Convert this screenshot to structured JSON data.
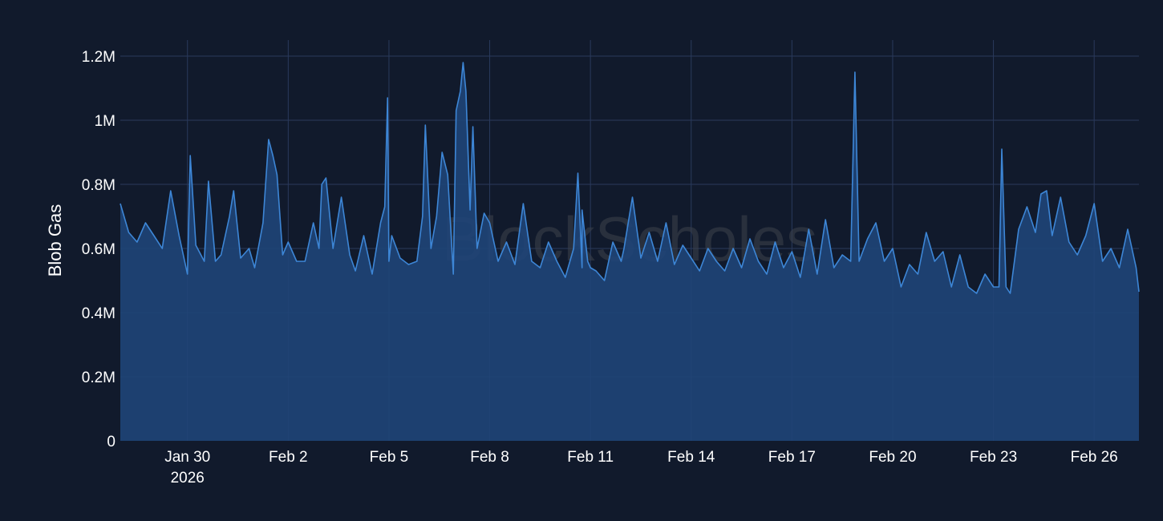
{
  "colors": {
    "background": "#111a2c",
    "grid": "#2a3a5c",
    "line": "#3d86d6",
    "fill": "#1f4578",
    "text": "#ffffff",
    "watermark": "#3a3f4a"
  },
  "watermark": "BlockScholes",
  "chart_data": {
    "type": "area",
    "title": "",
    "xlabel": "",
    "ylabel": "Blob Gas",
    "ylim": [
      0,
      1250000
    ],
    "xlim": [
      "2026-01-28T00:00",
      "2026-02-27T08:00"
    ],
    "grid": true,
    "legend": "none",
    "y_ticks": [
      {
        "value": 0,
        "label": "0"
      },
      {
        "value": 200000,
        "label": "0.2M"
      },
      {
        "value": 400000,
        "label": "0.4M"
      },
      {
        "value": 600000,
        "label": "0.6M"
      },
      {
        "value": 800000,
        "label": "0.8M"
      },
      {
        "value": 1000000,
        "label": "1M"
      },
      {
        "value": 1200000,
        "label": "1.2M"
      }
    ],
    "x_ticks": [
      {
        "date": "2026-01-30",
        "label": "Jan 30",
        "sublabel": "2026"
      },
      {
        "date": "2026-02-02",
        "label": "Feb 2",
        "sublabel": ""
      },
      {
        "date": "2026-02-05",
        "label": "Feb 5",
        "sublabel": ""
      },
      {
        "date": "2026-02-08",
        "label": "Feb 8",
        "sublabel": ""
      },
      {
        "date": "2026-02-11",
        "label": "Feb 11",
        "sublabel": ""
      },
      {
        "date": "2026-02-14",
        "label": "Feb 14",
        "sublabel": ""
      },
      {
        "date": "2026-02-17",
        "label": "Feb 17",
        "sublabel": ""
      },
      {
        "date": "2026-02-20",
        "label": "Feb 20",
        "sublabel": ""
      },
      {
        "date": "2026-02-23",
        "label": "Feb 23",
        "sublabel": ""
      },
      {
        "date": "2026-02-26",
        "label": "Feb 26",
        "sublabel": ""
      }
    ],
    "series": [
      {
        "points": [
          [
            "2026-01-28T00:00",
            740000
          ],
          [
            "2026-01-28T06:00",
            650000
          ],
          [
            "2026-01-28T12:00",
            620000
          ],
          [
            "2026-01-28T18:00",
            680000
          ],
          [
            "2026-01-29T00:00",
            640000
          ],
          [
            "2026-01-29T06:00",
            600000
          ],
          [
            "2026-01-29T12:00",
            780000
          ],
          [
            "2026-01-29T18:00",
            640000
          ],
          [
            "2026-01-30T00:00",
            520000
          ],
          [
            "2026-01-30T02:00",
            890000
          ],
          [
            "2026-01-30T06:00",
            610000
          ],
          [
            "2026-01-30T12:00",
            560000
          ],
          [
            "2026-01-30T15:00",
            810000
          ],
          [
            "2026-01-30T20:00",
            560000
          ],
          [
            "2026-01-31T00:00",
            580000
          ],
          [
            "2026-01-31T06:00",
            700000
          ],
          [
            "2026-01-31T09:00",
            780000
          ],
          [
            "2026-01-31T14:00",
            570000
          ],
          [
            "2026-01-31T20:00",
            600000
          ],
          [
            "2026-02-01T00:00",
            540000
          ],
          [
            "2026-02-01T06:00",
            680000
          ],
          [
            "2026-02-01T10:00",
            940000
          ],
          [
            "2026-02-01T13:00",
            890000
          ],
          [
            "2026-02-01T16:00",
            830000
          ],
          [
            "2026-02-01T20:00",
            580000
          ],
          [
            "2026-02-02T00:00",
            620000
          ],
          [
            "2026-02-02T06:00",
            560000
          ],
          [
            "2026-02-02T12:00",
            560000
          ],
          [
            "2026-02-02T18:00",
            680000
          ],
          [
            "2026-02-02T22:00",
            600000
          ],
          [
            "2026-02-03T00:00",
            800000
          ],
          [
            "2026-02-03T03:00",
            820000
          ],
          [
            "2026-02-03T08:00",
            600000
          ],
          [
            "2026-02-03T14:00",
            760000
          ],
          [
            "2026-02-03T20:00",
            580000
          ],
          [
            "2026-02-04T00:00",
            530000
          ],
          [
            "2026-02-04T06:00",
            640000
          ],
          [
            "2026-02-04T12:00",
            520000
          ],
          [
            "2026-02-04T18:00",
            680000
          ],
          [
            "2026-02-05T00:00",
            560000
          ],
          [
            "2026-02-04T21:00",
            730000
          ],
          [
            "2026-02-04T23:00",
            1070000
          ],
          [
            "2026-02-05T02:00",
            640000
          ],
          [
            "2026-02-05T08:00",
            570000
          ],
          [
            "2026-02-05T14:00",
            550000
          ],
          [
            "2026-02-05T20:00",
            560000
          ],
          [
            "2026-02-06T00:00",
            700000
          ],
          [
            "2026-02-06T02:00",
            985000
          ],
          [
            "2026-02-06T06:00",
            600000
          ],
          [
            "2026-02-06T10:00",
            700000
          ],
          [
            "2026-02-06T14:00",
            900000
          ],
          [
            "2026-02-06T18:00",
            830000
          ],
          [
            "2026-02-06T22:00",
            520000
          ],
          [
            "2026-02-07T00:00",
            1030000
          ],
          [
            "2026-02-07T03:00",
            1090000
          ],
          [
            "2026-02-07T05:00",
            1180000
          ],
          [
            "2026-02-07T07:00",
            1090000
          ],
          [
            "2026-02-07T10:00",
            720000
          ],
          [
            "2026-02-07T12:00",
            980000
          ],
          [
            "2026-02-07T15:00",
            600000
          ],
          [
            "2026-02-07T20:00",
            710000
          ],
          [
            "2026-02-08T00:00",
            680000
          ],
          [
            "2026-02-08T06:00",
            560000
          ],
          [
            "2026-02-08T12:00",
            620000
          ],
          [
            "2026-02-08T18:00",
            550000
          ],
          [
            "2026-02-09T00:00",
            740000
          ],
          [
            "2026-02-09T06:00",
            560000
          ],
          [
            "2026-02-09T12:00",
            540000
          ],
          [
            "2026-02-09T18:00",
            620000
          ],
          [
            "2026-02-10T00:00",
            560000
          ],
          [
            "2026-02-10T06:00",
            510000
          ],
          [
            "2026-02-10T12:00",
            600000
          ],
          [
            "2026-02-10T18:00",
            540000
          ],
          [
            "2026-02-11T00:00",
            540000
          ],
          [
            "2026-02-10T13:00",
            680000
          ],
          [
            "2026-02-10T15:00",
            835000
          ],
          [
            "2026-02-10T18:00",
            720000
          ],
          [
            "2026-02-10T22:00",
            560000
          ],
          [
            "2026-02-11T04:00",
            530000
          ],
          [
            "2026-02-11T10:00",
            500000
          ],
          [
            "2026-02-11T16:00",
            620000
          ],
          [
            "2026-02-11T22:00",
            560000
          ],
          [
            "2026-02-12T00:00",
            600000
          ],
          [
            "2026-02-12T06:00",
            760000
          ],
          [
            "2026-02-12T12:00",
            570000
          ],
          [
            "2026-02-12T18:00",
            650000
          ],
          [
            "2026-02-13T00:00",
            560000
          ],
          [
            "2026-02-13T06:00",
            680000
          ],
          [
            "2026-02-13T12:00",
            550000
          ],
          [
            "2026-02-13T18:00",
            610000
          ],
          [
            "2026-02-14T00:00",
            570000
          ],
          [
            "2026-02-14T06:00",
            530000
          ],
          [
            "2026-02-14T12:00",
            600000
          ],
          [
            "2026-02-14T18:00",
            560000
          ],
          [
            "2026-02-15T00:00",
            530000
          ],
          [
            "2026-02-15T06:00",
            600000
          ],
          [
            "2026-02-15T12:00",
            540000
          ],
          [
            "2026-02-15T18:00",
            630000
          ],
          [
            "2026-02-16T00:00",
            560000
          ],
          [
            "2026-02-16T06:00",
            520000
          ],
          [
            "2026-02-16T12:00",
            620000
          ],
          [
            "2026-02-16T18:00",
            540000
          ],
          [
            "2026-02-17T00:00",
            590000
          ],
          [
            "2026-02-17T06:00",
            510000
          ],
          [
            "2026-02-17T12:00",
            660000
          ],
          [
            "2026-02-17T18:00",
            520000
          ],
          [
            "2026-02-18T00:00",
            690000
          ],
          [
            "2026-02-18T06:00",
            540000
          ],
          [
            "2026-02-18T12:00",
            580000
          ],
          [
            "2026-02-18T18:00",
            560000
          ],
          [
            "2026-02-18T21:00",
            1150000
          ],
          [
            "2026-02-19T00:00",
            560000
          ],
          [
            "2026-02-19T06:00",
            630000
          ],
          [
            "2026-02-19T12:00",
            680000
          ],
          [
            "2026-02-19T18:00",
            560000
          ],
          [
            "2026-02-20T00:00",
            600000
          ],
          [
            "2026-02-20T06:00",
            480000
          ],
          [
            "2026-02-20T12:00",
            550000
          ],
          [
            "2026-02-20T18:00",
            520000
          ],
          [
            "2026-02-21T00:00",
            650000
          ],
          [
            "2026-02-21T06:00",
            560000
          ],
          [
            "2026-02-21T12:00",
            590000
          ],
          [
            "2026-02-21T18:00",
            480000
          ],
          [
            "2026-02-22T00:00",
            580000
          ],
          [
            "2026-02-22T06:00",
            480000
          ],
          [
            "2026-02-22T12:00",
            460000
          ],
          [
            "2026-02-22T18:00",
            520000
          ],
          [
            "2026-02-23T00:00",
            480000
          ],
          [
            "2026-02-23T04:00",
            480000
          ],
          [
            "2026-02-23T06:00",
            910000
          ],
          [
            "2026-02-23T09:00",
            480000
          ],
          [
            "2026-02-23T12:00",
            460000
          ],
          [
            "2026-02-23T18:00",
            660000
          ],
          [
            "2026-02-24T00:00",
            730000
          ],
          [
            "2026-02-24T06:00",
            650000
          ],
          [
            "2026-02-24T10:00",
            770000
          ],
          [
            "2026-02-24T14:00",
            780000
          ],
          [
            "2026-02-24T18:00",
            640000
          ],
          [
            "2026-02-25T00:00",
            760000
          ],
          [
            "2026-02-25T06:00",
            620000
          ],
          [
            "2026-02-25T12:00",
            580000
          ],
          [
            "2026-02-25T18:00",
            640000
          ],
          [
            "2026-02-26T00:00",
            740000
          ],
          [
            "2026-02-26T06:00",
            560000
          ],
          [
            "2026-02-26T12:00",
            600000
          ],
          [
            "2026-02-26T18:00",
            540000
          ],
          [
            "2026-02-27T00:00",
            660000
          ],
          [
            "2026-02-27T06:00",
            540000
          ],
          [
            "2026-02-27T08:00",
            465000
          ]
        ]
      }
    ]
  }
}
